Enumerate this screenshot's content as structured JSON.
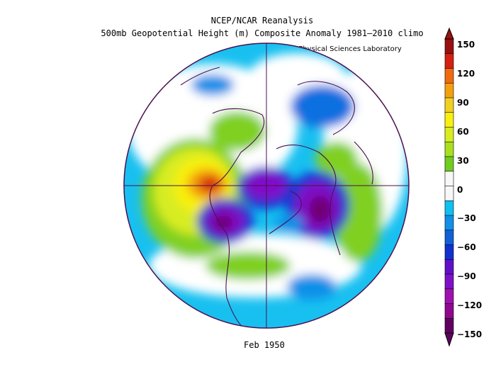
{
  "header": {
    "title_line1": "NCEP/NCAR Reanalysis",
    "title_line2": "500mb Geopotential Height (m) Composite Anomaly 1981–2010 climo",
    "credit": "NOAA Physical Sciences Laboratory"
  },
  "caption": "Feb 1950",
  "colorbar": {
    "labels": [
      "150",
      "120",
      "90",
      "60",
      "30",
      "0",
      "−30",
      "−60",
      "−90",
      "−120",
      "−150"
    ],
    "colors": [
      "#9a1010",
      "#d42010",
      "#f06a10",
      "#f5a010",
      "#f0d020",
      "#f8f010",
      "#d8ec20",
      "#a8e020",
      "#70cc20",
      "#f8f8f8",
      "#f8f8f8",
      "#10c0f0",
      "#1090e8",
      "#1060d8",
      "#1030d0",
      "#6010c8",
      "#8010c8",
      "#a010b0",
      "#900890",
      "#600060"
    ]
  }
}
